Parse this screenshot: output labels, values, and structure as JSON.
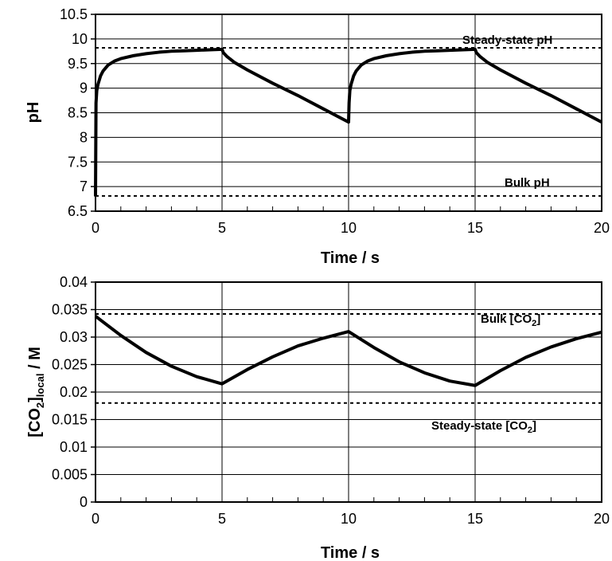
{
  "chart_data": [
    {
      "type": "line",
      "xlabel": "Time / s",
      "ylabel": "pH",
      "xlim": [
        0,
        20
      ],
      "ylim": [
        6.5,
        10.5
      ],
      "x_ticks": [
        "0",
        "5",
        "10",
        "15",
        "20"
      ],
      "y_ticks": [
        "6.5",
        "7",
        "7.5",
        "8",
        "8.5",
        "9",
        "9.5",
        "10",
        "10.5"
      ],
      "grid": true,
      "series": [
        {
          "x": [
            0,
            0.02,
            0.05,
            0.1,
            0.2,
            0.3,
            0.5,
            0.75,
            1,
            1.5,
            2,
            2.5,
            3,
            3.5,
            4,
            4.5,
            5,
            5.05,
            5.2,
            5.5,
            6,
            7,
            8,
            9,
            10,
            10.02,
            10.05,
            10.1,
            10.2,
            10.3,
            10.5,
            10.75,
            11,
            11.5,
            12,
            12.5,
            13,
            13.5,
            14,
            14.5,
            15,
            15.05,
            15.2,
            15.5,
            16,
            17,
            18,
            19,
            20
          ],
          "y": [
            6.8,
            8.7,
            8.95,
            9.08,
            9.25,
            9.35,
            9.47,
            9.55,
            9.6,
            9.66,
            9.7,
            9.73,
            9.75,
            9.76,
            9.77,
            9.78,
            9.79,
            9.72,
            9.64,
            9.52,
            9.37,
            9.1,
            8.85,
            8.58,
            8.31,
            8.7,
            8.95,
            9.08,
            9.25,
            9.35,
            9.47,
            9.55,
            9.6,
            9.66,
            9.7,
            9.73,
            9.75,
            9.76,
            9.77,
            9.78,
            9.79,
            9.72,
            9.64,
            9.52,
            9.37,
            9.1,
            8.85,
            8.58,
            8.31
          ]
        }
      ],
      "reference_lines": [
        {
          "label": "Steady-state pH",
          "y": 9.82
        },
        {
          "label": "Bulk pH",
          "y": 6.81
        }
      ]
    },
    {
      "type": "line",
      "xlabel": "Time / s",
      "ylabel_main": "[CO",
      "ylabel_sub1": "2",
      "ylabel_mid": "]",
      "ylabel_sub2": "local",
      "ylabel_tail": " / M",
      "xlim": [
        0,
        20
      ],
      "ylim": [
        0,
        0.04
      ],
      "x_ticks": [
        "0",
        "5",
        "10",
        "15",
        "20"
      ],
      "y_ticks": [
        "0",
        "0.005",
        "0.01",
        "0.015",
        "0.02",
        "0.025",
        "0.03",
        "0.035",
        "0.04"
      ],
      "grid": true,
      "series": [
        {
          "x": [
            0,
            1,
            2,
            3,
            4,
            5,
            6,
            7,
            8,
            9,
            10,
            11,
            12,
            13,
            14,
            15,
            16,
            17,
            18,
            19,
            20
          ],
          "y": [
            0.0338,
            0.0303,
            0.0272,
            0.0247,
            0.0228,
            0.0215,
            0.0241,
            0.0264,
            0.0284,
            0.0298,
            0.031,
            0.0281,
            0.0255,
            0.0235,
            0.022,
            0.0212,
            0.0239,
            0.0263,
            0.0282,
            0.0297,
            0.0309
          ]
        }
      ],
      "reference_lines": [
        {
          "label_main": "Bulk [CO",
          "label_sub": "2",
          "label_tail": "]",
          "y": 0.0342
        },
        {
          "label_main": "Steady-state [CO",
          "label_sub": "2",
          "label_tail": "]",
          "y": 0.018
        }
      ]
    }
  ]
}
